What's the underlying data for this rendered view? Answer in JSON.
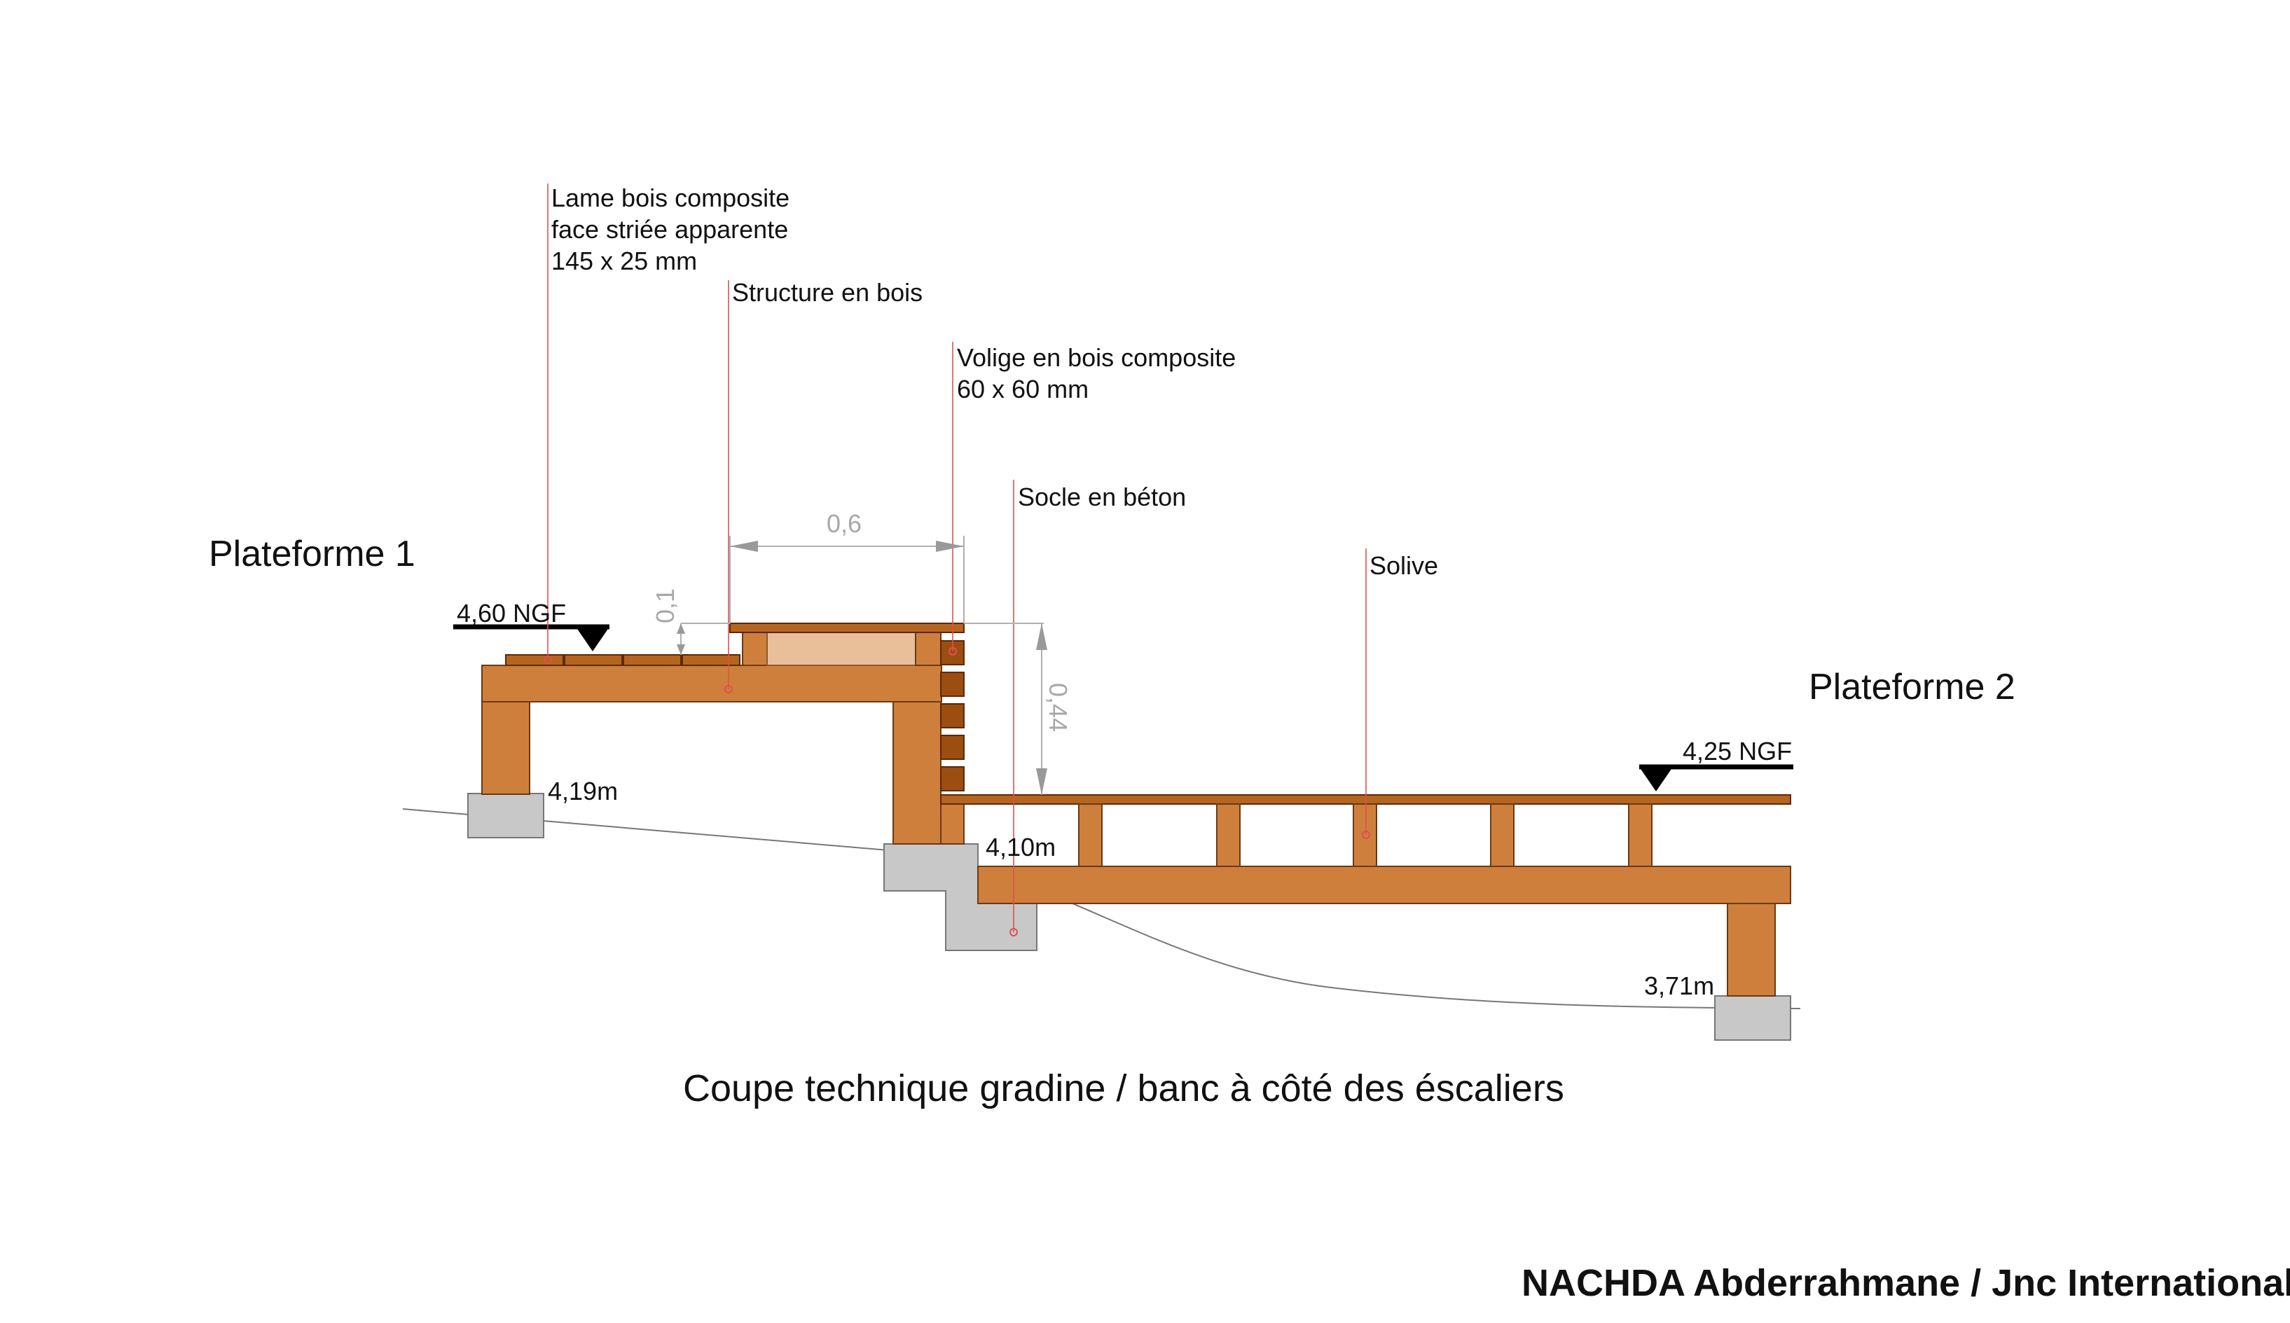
{
  "labels": {
    "plateforme1": "Plateforme 1",
    "plateforme2": "Plateforme 2",
    "lame_line1": "Lame bois composite",
    "lame_line2": "face striée apparente",
    "lame_line3": "145 x 25 mm",
    "structure": "Structure en bois",
    "volige_line1": "Volige en bois composite",
    "volige_line2": "60 x 60 mm",
    "socle": "Socle en béton",
    "solive": "Solive",
    "ngf1": "4,60 NGF",
    "ngf2": "4,25 NGF",
    "level_419": "4,19m",
    "level_410": "4,10m",
    "level_371": "3,71m",
    "dim_06": "0,6",
    "dim_01": "0,1",
    "dim_044": "0,44",
    "caption": "Coupe technique gradine / banc à côté des éscaliers",
    "credit": "NACHDA Abderrahmane / Jnc International  ©"
  },
  "colors": {
    "wood": "#cf7f3c",
    "wood_dark": "#9c4d10",
    "concrete": "#c8c8c8",
    "leader": "#e05050",
    "dimension": "#a8a8a8"
  }
}
